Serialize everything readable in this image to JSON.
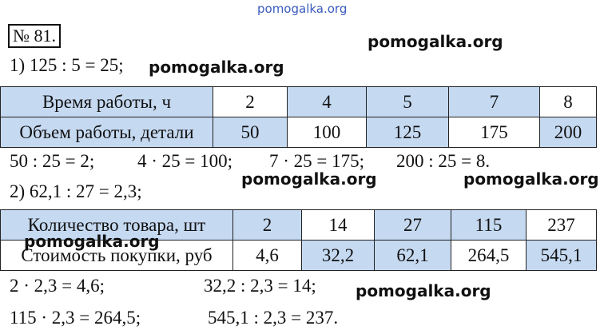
{
  "header": {
    "watermark": "pomogalka.org",
    "number": "№ 81."
  },
  "watermarks": [
    "pomogalka.org",
    "pomogalka.org",
    "pomogalka.org",
    "pomogalka.org",
    "pomogalka.org",
    "pomogalka.org"
  ],
  "lines": [
    "1) 125 : 5 = 25;",
    "50 : 25 = 2;",
    "4 · 25 = 100;",
    "7 · 25 = 175;",
    "200 : 25 = 8.",
    "2) 62,1 : 27 = 2,3;",
    "2 · 2,3 = 4,6;",
    "32,2 : 2,3 = 14;",
    "115 · 2,3 = 264,5;",
    "545,1 : 2,3 = 237."
  ],
  "tables": [
    {
      "rows": [
        [
          "Время работы, ч",
          "2",
          "4",
          "5",
          "7",
          "8"
        ],
        [
          "Объем работы, детали",
          "50",
          "100",
          "125",
          "175",
          "200"
        ]
      ]
    },
    {
      "rows": [
        [
          "Количество товара, шт",
          "2",
          "14",
          "27",
          "115",
          "237"
        ],
        [
          "Стоимость покупки, руб",
          "4,6",
          "32,2",
          "62,1",
          "264,5",
          "545,1"
        ]
      ]
    }
  ]
}
